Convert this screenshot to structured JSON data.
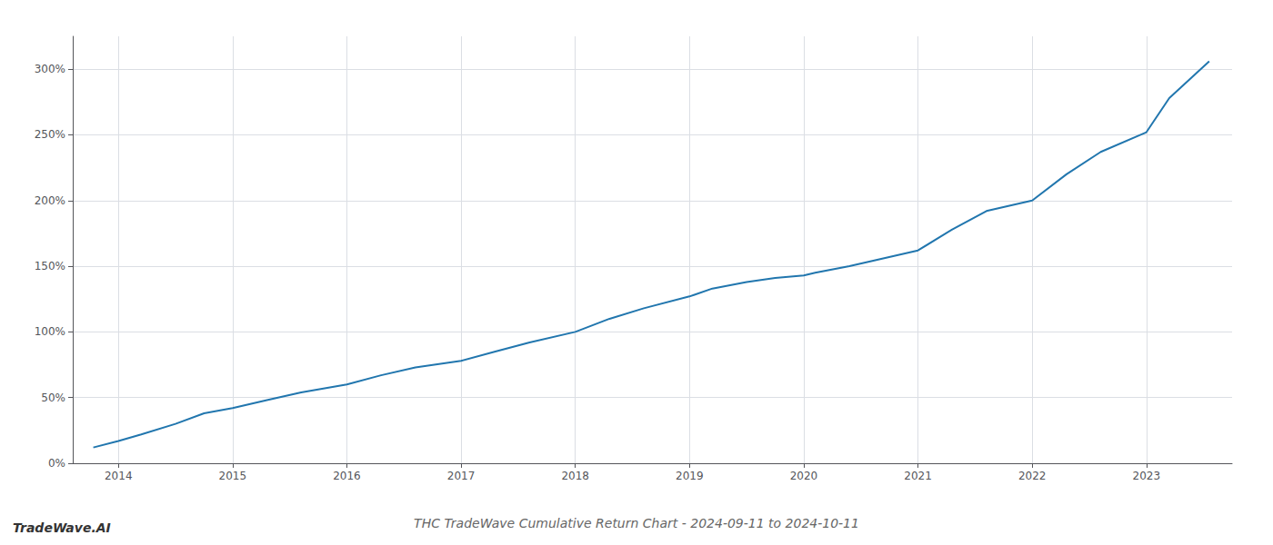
{
  "chart_data": {
    "type": "line",
    "title": "THC TradeWave Cumulative Return Chart - 2024-09-11 to 2024-10-11",
    "annotations": [
      "TradeWave.AI"
    ],
    "color": "#2176ae",
    "x": [
      2013.78,
      2014.0,
      2014.2,
      2014.5,
      2014.75,
      2015.0,
      2015.3,
      2015.6,
      2016.0,
      2016.3,
      2016.6,
      2017.0,
      2017.3,
      2017.6,
      2018.0,
      2018.3,
      2018.6,
      2019.0,
      2019.2,
      2019.5,
      2019.75,
      2020.0,
      2020.1,
      2020.4,
      2021.0,
      2021.3,
      2021.6,
      2022.0,
      2022.3,
      2022.6,
      2023.0,
      2023.2,
      2023.55
    ],
    "values": [
      12,
      17,
      22,
      30,
      38,
      42,
      48,
      54,
      60,
      67,
      73,
      78,
      85,
      92,
      100,
      110,
      118,
      127,
      133,
      138,
      141,
      143,
      145,
      150,
      162,
      178,
      192,
      200,
      220,
      237,
      252,
      278,
      306
    ],
    "xlim": [
      2013.6,
      2023.75
    ],
    "xticks": [
      2014,
      2015,
      2016,
      2017,
      2018,
      2019,
      2020,
      2021,
      2022,
      2023
    ],
    "ylim": [
      0,
      325
    ],
    "yticks": [
      {
        "value": 0,
        "label": "0%"
      },
      {
        "value": 50,
        "label": "50%"
      },
      {
        "value": 100,
        "label": "100%"
      },
      {
        "value": 150,
        "label": "150%"
      },
      {
        "value": 200,
        "label": "200%"
      },
      {
        "value": 250,
        "label": "250%"
      },
      {
        "value": 300,
        "label": "300%"
      }
    ],
    "grid": true
  }
}
